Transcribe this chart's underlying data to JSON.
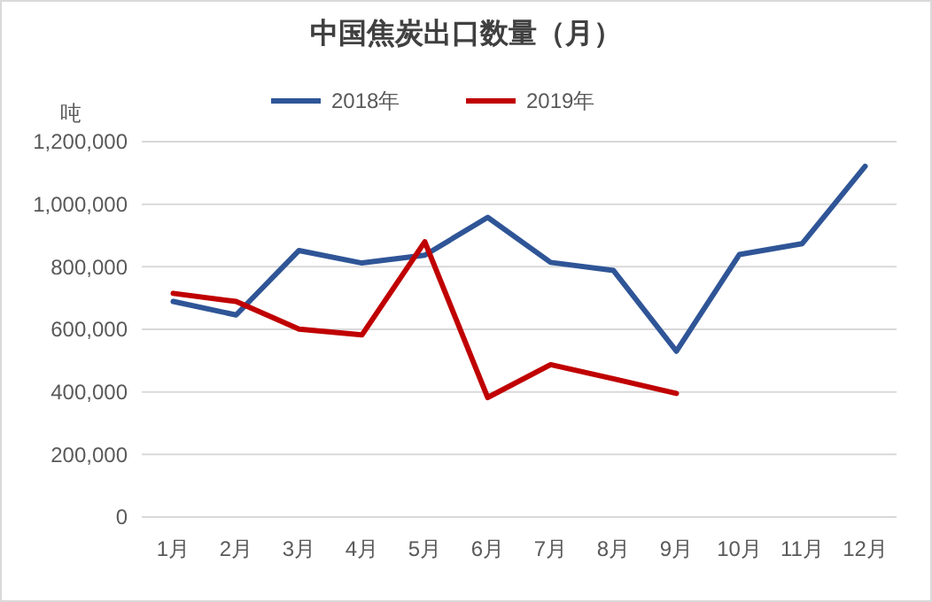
{
  "chart_data": {
    "type": "line",
    "title": "中国焦炭出口数量（月）",
    "ylabel": "吨",
    "categories": [
      "1月",
      "2月",
      "3月",
      "4月",
      "5月",
      "6月",
      "7月",
      "8月",
      "9月",
      "10月",
      "11月",
      "12月"
    ],
    "series": [
      {
        "name": "2018年",
        "color": "#2f5597",
        "values": [
          689000,
          646000,
          852000,
          812000,
          837000,
          958000,
          814000,
          788000,
          530000,
          839000,
          874000,
          1121000
        ]
      },
      {
        "name": "2019年",
        "color": "#c00000",
        "values": [
          715000,
          689000,
          601000,
          582000,
          880000,
          382000,
          487000,
          442000,
          395000,
          null,
          null,
          null
        ]
      }
    ],
    "ylim": [
      0,
      1200000
    ],
    "yticks": [
      {
        "value": 0,
        "label": "0"
      },
      {
        "value": 200000,
        "label": "200,000"
      },
      {
        "value": 400000,
        "label": "400,000"
      },
      {
        "value": 600000,
        "label": "600,000"
      },
      {
        "value": 800000,
        "label": "800,000"
      },
      {
        "value": 1000000,
        "label": "1,000,000"
      },
      {
        "value": 1200000,
        "label": "1,200,000"
      }
    ],
    "grid": "y",
    "legend": "top",
    "marker": "none",
    "line_style": "solid"
  }
}
